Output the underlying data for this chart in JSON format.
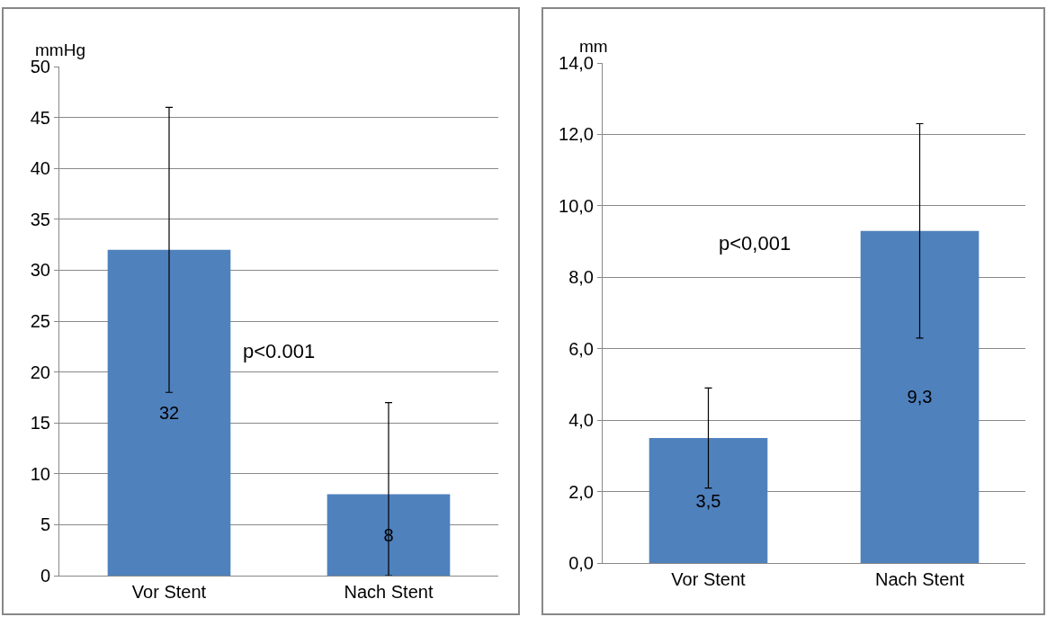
{
  "chart_data": [
    {
      "type": "bar",
      "ylabel": "mmHg",
      "categories": [
        "Vor Stent",
        "Nach Stent"
      ],
      "values": [
        32,
        8
      ],
      "color": "#4f81bd",
      "errors": [
        [
          18,
          46
        ],
        [
          0,
          17
        ]
      ],
      "data_labels": true,
      "annotations": [
        "p<0.001"
      ],
      "ylim": [
        0,
        50
      ],
      "yticks": [
        0,
        5,
        10,
        15,
        20,
        25,
        30,
        35,
        40,
        45,
        50
      ],
      "grid": "y",
      "legend": false
    },
    {
      "type": "bar",
      "ylabel": "mm",
      "categories": [
        "Vor Stent",
        "Nach Stent"
      ],
      "values": [
        3.5,
        9.3
      ],
      "color": "#4f81bd",
      "errors": [
        [
          2.1,
          4.9
        ],
        [
          6.3,
          12.3
        ]
      ],
      "value_labels": [
        "3,5",
        "9,3"
      ],
      "annotations": [
        "p<0,001"
      ],
      "ylim": [
        0,
        14
      ],
      "yticks": [
        {
          "value": 0,
          "label": "0,0"
        },
        {
          "value": 2,
          "label": "2,0"
        },
        {
          "value": 4,
          "label": "4,0"
        },
        {
          "value": 6,
          "label": "6,0"
        },
        {
          "value": 8,
          "label": "8,0"
        },
        {
          "value": 10,
          "label": "10,0"
        },
        {
          "value": 12,
          "label": "12,0"
        },
        {
          "value": 14,
          "label": "14,0"
        }
      ],
      "grid": "y",
      "legend": false
    }
  ]
}
